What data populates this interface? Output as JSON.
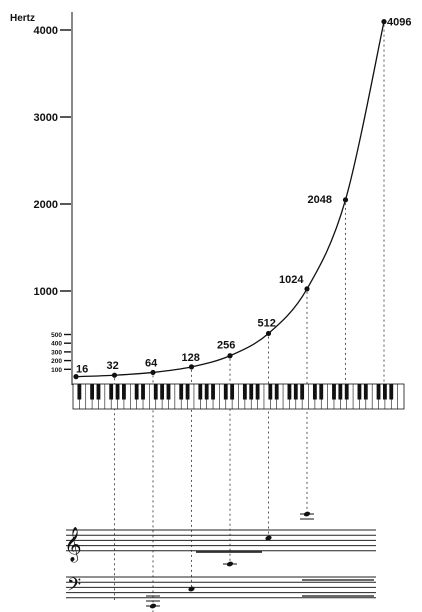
{
  "axis": {
    "unit_label": "Hertz",
    "major_ticks": [
      {
        "label": "4000",
        "value": 4000
      },
      {
        "label": "3000",
        "value": 3000
      },
      {
        "label": "2000",
        "value": 2000
      },
      {
        "label": "1000",
        "value": 1000
      }
    ],
    "minor_ticks": [
      {
        "label": "500",
        "value": 500
      },
      {
        "label": "400",
        "value": 400
      },
      {
        "label": "300",
        "value": 300
      },
      {
        "label": "200",
        "value": 200
      },
      {
        "label": "100",
        "value": 100
      }
    ],
    "range": [
      0,
      4200
    ]
  },
  "frequencies": [
    {
      "label": "16",
      "value": 16
    },
    {
      "label": "32",
      "value": 32
    },
    {
      "label": "64",
      "value": 64
    },
    {
      "label": "128",
      "value": 128
    },
    {
      "label": "256",
      "value": 256
    },
    {
      "label": "512",
      "value": 512
    },
    {
      "label": "1024",
      "value": 1024
    },
    {
      "label": "2048",
      "value": 2048
    },
    {
      "label": "4096",
      "value": 4096
    }
  ],
  "colors": {
    "ink": "#111111",
    "paper": "#ffffff"
  },
  "icons": {
    "treble_clef": "treble-clef-icon",
    "bass_clef": "bass-clef-icon",
    "keyboard": "piano-keyboard-icon"
  }
}
